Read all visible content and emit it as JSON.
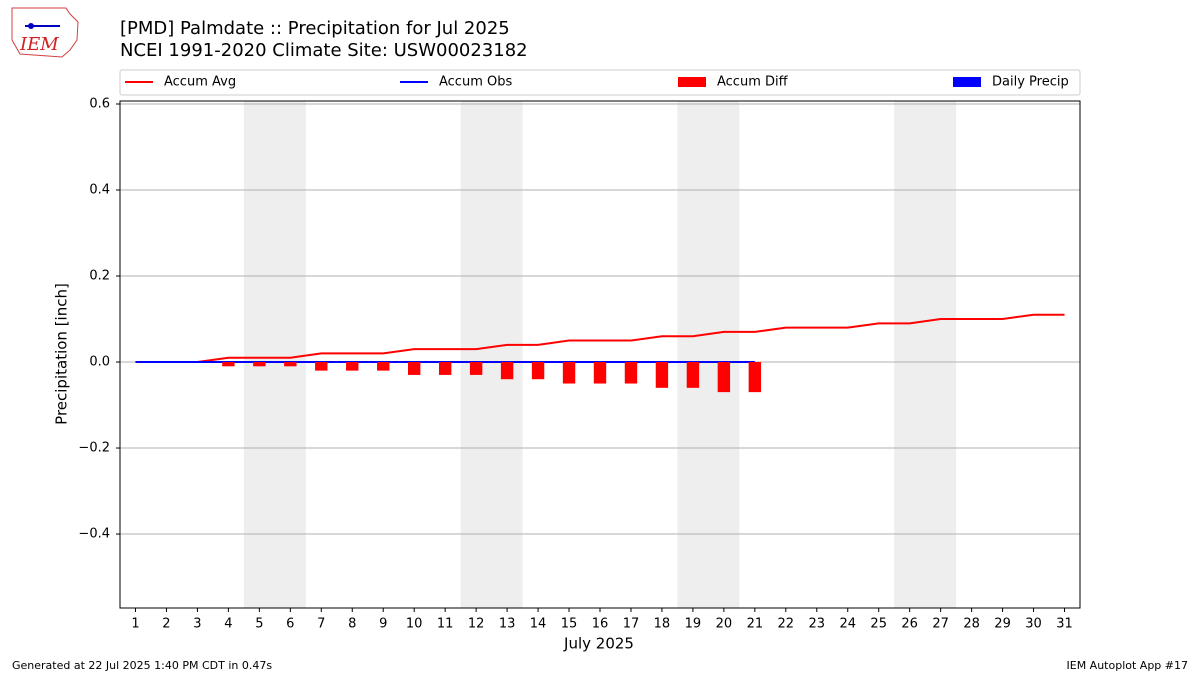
{
  "chart_data": {
    "type": "line",
    "title": "[PMD] Palmdate :: Precipitation for Jul 2025",
    "subtitle": "NCEI 1991-2020 Climate Site: USW00023182",
    "logo_text": "IEM",
    "xlabel": "July 2025",
    "ylabel": "Precipitation [inch]",
    "footer_left": "Generated at 22 Jul 2025 1:40 PM CDT in 0.47s",
    "footer_right": "IEM Autoplot App #17",
    "x": [
      1,
      2,
      3,
      4,
      5,
      6,
      7,
      8,
      9,
      10,
      11,
      12,
      13,
      14,
      15,
      16,
      17,
      18,
      19,
      20,
      21,
      22,
      23,
      24,
      25,
      26,
      27,
      28,
      29,
      30,
      31
    ],
    "series": [
      {
        "name": "Accum Avg",
        "type": "line",
        "color": "#ff0000",
        "values": [
          0,
          0,
          0,
          0.01,
          0.01,
          0.01,
          0.02,
          0.02,
          0.02,
          0.03,
          0.03,
          0.03,
          0.04,
          0.04,
          0.05,
          0.05,
          0.05,
          0.06,
          0.06,
          0.07,
          0.07,
          0.08,
          0.08,
          0.08,
          0.09,
          0.09,
          0.1,
          0.1,
          0.1,
          0.11,
          0.11
        ]
      },
      {
        "name": "Accum Obs",
        "type": "line",
        "color": "#0000ff",
        "values": [
          0,
          0,
          0,
          0,
          0,
          0,
          0,
          0,
          0,
          0,
          0,
          0,
          0,
          0,
          0,
          0,
          0,
          0,
          0,
          0,
          0,
          null,
          null,
          null,
          null,
          null,
          null,
          null,
          null,
          null,
          null
        ]
      },
      {
        "name": "Accum Diff",
        "type": "bar",
        "color": "#ff0000",
        "values": [
          0,
          0,
          0,
          -0.01,
          -0.01,
          -0.01,
          -0.02,
          -0.02,
          -0.02,
          -0.03,
          -0.03,
          -0.03,
          -0.04,
          -0.04,
          -0.05,
          -0.05,
          -0.05,
          -0.06,
          -0.06,
          -0.07,
          -0.07,
          null,
          null,
          null,
          null,
          null,
          null,
          null,
          null,
          null,
          null
        ]
      },
      {
        "name": "Daily Precip",
        "type": "bar",
        "color": "#0000ff",
        "values": [
          0,
          0,
          0,
          0,
          0,
          0,
          0,
          0,
          0,
          0,
          0,
          0,
          0,
          0,
          0,
          0,
          0,
          0,
          0,
          0,
          0,
          null,
          null,
          null,
          null,
          null,
          null,
          null,
          null,
          null,
          null
        ]
      }
    ],
    "shaded_ranges": [
      [
        4.5,
        6.5
      ],
      [
        11.5,
        13.5
      ],
      [
        18.5,
        20.5
      ],
      [
        25.5,
        27.5
      ]
    ],
    "shade_color": "#eeeeee",
    "xlim": [
      0.5,
      31.5
    ],
    "xticks": [
      1,
      2,
      3,
      4,
      5,
      6,
      7,
      8,
      9,
      10,
      11,
      12,
      13,
      14,
      15,
      16,
      17,
      18,
      19,
      20,
      21,
      22,
      23,
      24,
      25,
      26,
      27,
      28,
      29,
      30,
      31
    ],
    "ylim": [
      -0.572,
      0.607
    ],
    "yticks": [
      {
        "value": -0.4,
        "label": "−0.4"
      },
      {
        "value": -0.2,
        "label": "−0.2"
      },
      {
        "value": 0,
        "label": "0.0"
      },
      0.2,
      0.4,
      0.6
    ],
    "grid": true,
    "legend": "top"
  }
}
